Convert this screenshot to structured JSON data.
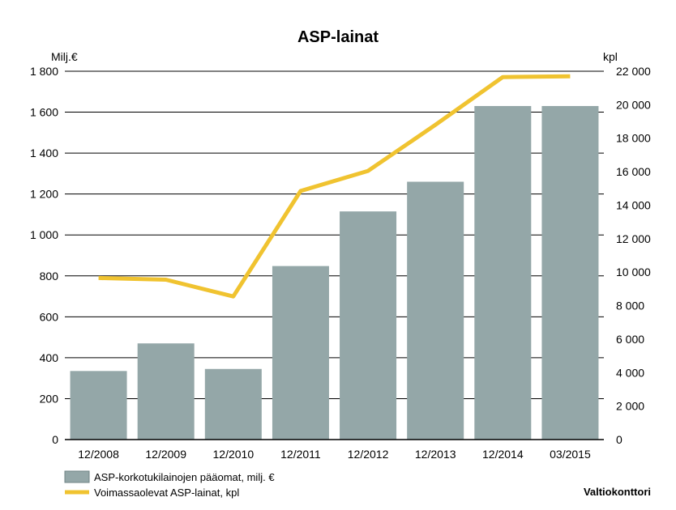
{
  "chart_data": {
    "type": "bar",
    "title": "ASP-lainat",
    "categories": [
      "12/2008",
      "12/2009",
      "12/2010",
      "12/2011",
      "12/2012",
      "12/2013",
      "12/2014",
      "03/2015"
    ],
    "left_axis": {
      "label": "Milj.€",
      "ylim": [
        0,
        1800
      ],
      "ticks": [
        0,
        200,
        400,
        600,
        800,
        1000,
        1200,
        1400,
        1600,
        1800
      ],
      "tick_labels": [
        "0",
        "200",
        "400",
        "600",
        "800",
        "1 000",
        "1 200",
        "1 400",
        "1 600",
        "1 800"
      ]
    },
    "right_axis": {
      "label": "kpl",
      "ylim": [
        0,
        22000
      ],
      "ticks": [
        0,
        2000,
        4000,
        6000,
        8000,
        10000,
        12000,
        14000,
        16000,
        18000,
        20000,
        22000
      ],
      "tick_labels": [
        "0",
        "2 000",
        "4 000",
        "6 000",
        "8 000",
        "10 000",
        "12 000",
        "14 000",
        "16 000",
        "18 000",
        "20 000",
        "22 000"
      ]
    },
    "series": [
      {
        "name": "ASP-korkotukilainojen pääomat, milj. €",
        "kind": "bar",
        "axis": "left",
        "color": "#94a7a8",
        "values": [
          335,
          470,
          345,
          848,
          1115,
          1260,
          1630,
          1630
        ]
      },
      {
        "name": "Voimassaolevat ASP-lainat, kpl",
        "kind": "line",
        "axis": "right",
        "color": "#f0c330",
        "values": [
          9650,
          9550,
          8550,
          14850,
          16050,
          18800,
          21650,
          21700
        ]
      }
    ],
    "grid": true,
    "legend_position": "bottom-left"
  },
  "source": "Valtiokonttori"
}
